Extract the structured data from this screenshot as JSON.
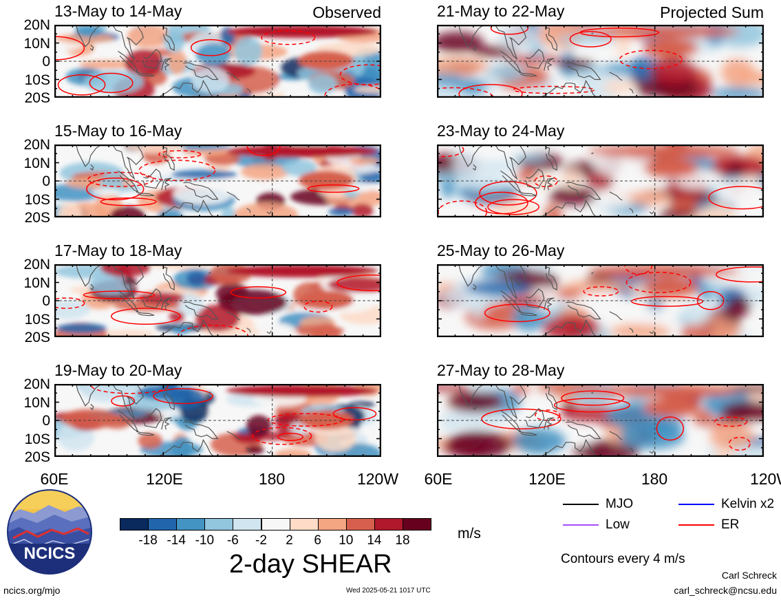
{
  "panel_tags": {
    "left": "Observed",
    "right": "Projected Sum"
  },
  "panels": [
    {
      "title": "13-May to 14-May",
      "column": "left",
      "row": 0
    },
    {
      "title": "15-May to 16-May",
      "column": "left",
      "row": 1
    },
    {
      "title": "17-May to 18-May",
      "column": "left",
      "row": 2
    },
    {
      "title": "19-May to 20-May",
      "column": "left",
      "row": 3
    },
    {
      "title": "21-May to 22-May",
      "column": "right",
      "row": 0
    },
    {
      "title": "23-May to 24-May",
      "column": "right",
      "row": 1
    },
    {
      "title": "25-May to 26-May",
      "column": "right",
      "row": 2
    },
    {
      "title": "27-May to 28-May",
      "column": "right",
      "row": 3
    }
  ],
  "lat_labels": [
    "20N",
    "10N",
    "0",
    "10S",
    "20S"
  ],
  "lon_labels": [
    "60E",
    "120E",
    "180",
    "120W"
  ],
  "colorbar": {
    "ticks": [
      "-18",
      "-14",
      "-10",
      "-6",
      "-2",
      "2",
      "6",
      "10",
      "14",
      "18"
    ],
    "colors": [
      "#0a2a5e",
      "#2166ac",
      "#4393c3",
      "#92c5de",
      "#d1e5f0",
      "#f7f7f7",
      "#fddbc7",
      "#f4a582",
      "#d6604d",
      "#b2182b",
      "#67001f"
    ],
    "unit": "m/s",
    "title": "2-day SHEAR"
  },
  "legend": {
    "items": [
      {
        "label": "MJO",
        "color": "#000000"
      },
      {
        "label": "Kelvin x2",
        "color": "#0000ff"
      },
      {
        "label": "Low",
        "color": "#a64dff"
      },
      {
        "label": "ER",
        "color": "#ff0000"
      }
    ],
    "note": "Contours every 4 m/s"
  },
  "logo": {
    "text": "NCICS"
  },
  "footer": {
    "url": "ncics.org/mjo",
    "timestamp": "Wed 2025-05-21 1017 UTC",
    "author": "Carl Schreck",
    "email": "carl_schreck@ncsu.edu"
  }
}
